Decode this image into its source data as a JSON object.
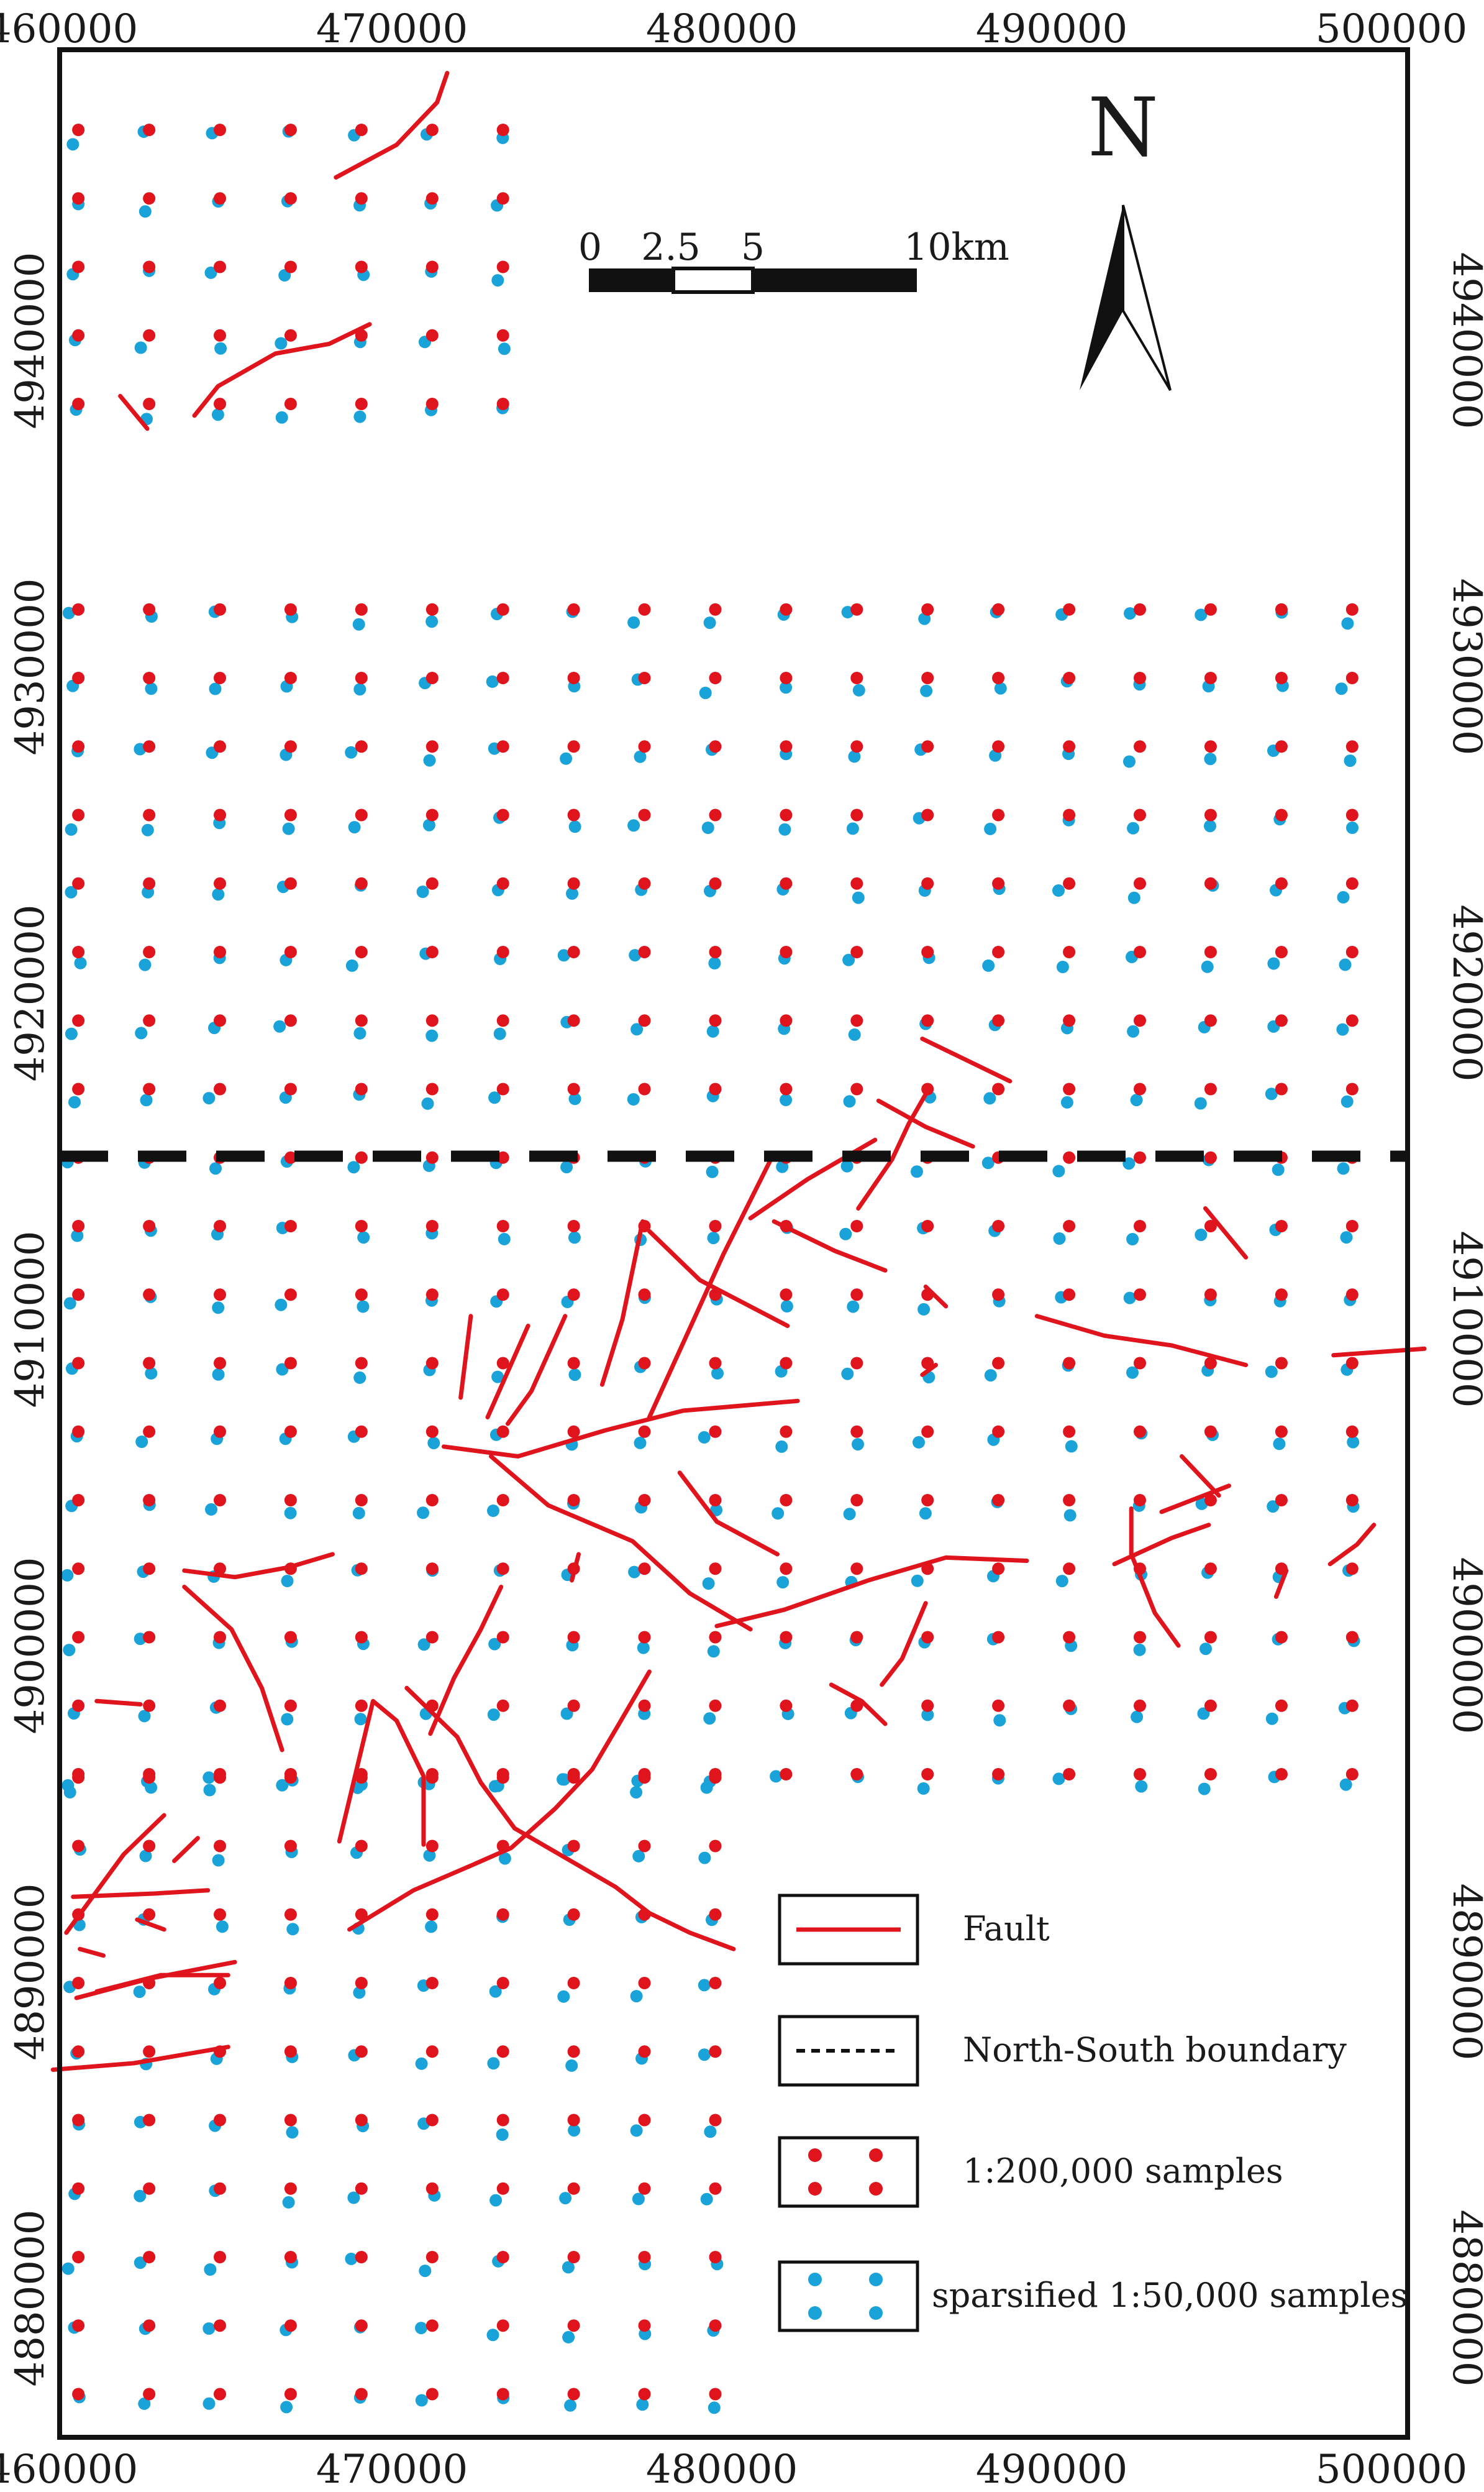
{
  "map": {
    "x_ticks": [
      "460000",
      "470000",
      "480000",
      "490000",
      "500000"
    ],
    "y_ticks": [
      "4940000",
      "4930000",
      "4920000",
      "4910000",
      "4900000",
      "4890000",
      "4880000"
    ],
    "north_label": "N",
    "scale_labels": [
      "0",
      "2.5",
      "5",
      "10km"
    ],
    "legend": {
      "fault": "Fault",
      "boundary": "North-South boundary",
      "samples_200k": "1:200,000 samples",
      "samples_50k": "sparsified 1:50,000 samples"
    },
    "colors": {
      "fault": "#e0141c",
      "sample_200k": "#e0141c",
      "sample_50k": "#1aa3d9",
      "boundary": "#111111",
      "frame": "#111111"
    },
    "extent": {
      "x_min": 460000,
      "x_max": 500000,
      "y_min": 4877000,
      "y_max": 4948000
    },
    "boundary_northing": 4915000,
    "sample_grid": {
      "spacing_m": 2100,
      "x_start": 460500,
      "regions": [
        {
          "x_from": 460500,
          "x_to": 473100,
          "y_from": 4938000,
          "y_to": 4946400
        },
        {
          "x_from": 460500,
          "x_to": 500000,
          "y_from": 4917000,
          "y_to": 4931700
        },
        {
          "x_from": 460500,
          "x_to": 500000,
          "y_from": 4896000,
          "y_to": 4915000
        },
        {
          "x_from": 460500,
          "x_to": 479400,
          "y_from": 4877000,
          "y_to": 4896000
        }
      ]
    },
    "faults": [
      [
        [
          468200,
          4945000
        ],
        [
          470000,
          4946000
        ],
        [
          471200,
          4947300
        ],
        [
          471500,
          4948200
        ]
      ],
      [
        [
          464000,
          4937700
        ],
        [
          464700,
          4938600
        ],
        [
          466400,
          4939600
        ],
        [
          468000,
          4939900
        ],
        [
          469200,
          4940500
        ]
      ],
      [
        [
          461800,
          4938300
        ],
        [
          462600,
          4937300
        ]
      ],
      [
        [
          483700,
          4913400
        ],
        [
          484700,
          4914900
        ],
        [
          485200,
          4916000
        ],
        [
          485700,
          4916900
        ]
      ],
      [
        [
          484300,
          4916700
        ],
        [
          485700,
          4915900
        ],
        [
          487100,
          4915300
        ]
      ],
      [
        [
          485600,
          4918600
        ],
        [
          486800,
          4918000
        ],
        [
          488200,
          4917300
        ]
      ],
      [
        [
          480500,
          4913100
        ],
        [
          482200,
          4914300
        ],
        [
          484200,
          4915500
        ]
      ],
      [
        [
          471400,
          4906100
        ],
        [
          473600,
          4905800
        ],
        [
          476200,
          4906600
        ],
        [
          478500,
          4907200
        ],
        [
          481900,
          4907500
        ]
      ],
      [
        [
          481200,
          4915100
        ],
        [
          479700,
          4912000
        ],
        [
          478600,
          4909500
        ],
        [
          477500,
          4907000
        ]
      ],
      [
        [
          477300,
          4913000
        ],
        [
          476700,
          4910000
        ],
        [
          476100,
          4908000
        ]
      ],
      [
        [
          477500,
          4912700
        ],
        [
          479000,
          4911200
        ],
        [
          481600,
          4909800
        ]
      ],
      [
        [
          481200,
          4913000
        ],
        [
          483000,
          4912100
        ],
        [
          484500,
          4911500
        ]
      ],
      [
        [
          472200,
          4910100
        ],
        [
          471900,
          4907600
        ]
      ],
      [
        [
          473900,
          4909800
        ],
        [
          472700,
          4907000
        ]
      ],
      [
        [
          475000,
          4910100
        ],
        [
          474000,
          4907800
        ],
        [
          473300,
          4906800
        ]
      ],
      [
        [
          472800,
          4905800
        ],
        [
          474500,
          4904300
        ],
        [
          477000,
          4903200
        ],
        [
          478700,
          4901600
        ],
        [
          480500,
          4900500
        ]
      ],
      [
        [
          478400,
          4905300
        ],
        [
          479500,
          4903800
        ],
        [
          481300,
          4902800
        ]
      ],
      [
        [
          479500,
          4900600
        ],
        [
          481500,
          4901100
        ],
        [
          484000,
          4902000
        ],
        [
          486300,
          4902700
        ],
        [
          488700,
          4902600
        ]
      ],
      [
        [
          475400,
          4902800
        ],
        [
          475200,
          4902000
        ]
      ],
      [
        [
          485700,
          4901300
        ],
        [
          485000,
          4899600
        ],
        [
          484400,
          4898800
        ]
      ],
      [
        [
          482900,
          4898800
        ],
        [
          483800,
          4898300
        ],
        [
          484500,
          4897600
        ]
      ],
      [
        [
          485700,
          4911000
        ],
        [
          486300,
          4910400
        ]
      ],
      [
        [
          486000,
          4908600
        ],
        [
          485600,
          4908300
        ]
      ],
      [
        [
          489000,
          4910100
        ],
        [
          491000,
          4909500
        ],
        [
          493000,
          4909200
        ],
        [
          495200,
          4908600
        ]
      ],
      [
        [
          494000,
          4913400
        ],
        [
          495200,
          4911900
        ]
      ],
      [
        [
          497800,
          4908900
        ],
        [
          500500,
          4909100
        ]
      ],
      [
        [
          493300,
          4905800
        ],
        [
          494400,
          4904600
        ]
      ],
      [
        [
          492700,
          4904100
        ],
        [
          494700,
          4904900
        ]
      ],
      [
        [
          491800,
          4904200
        ],
        [
          491800,
          4902800
        ],
        [
          492500,
          4901000
        ],
        [
          493200,
          4900000
        ]
      ],
      [
        [
          491300,
          4902500
        ],
        [
          493000,
          4903300
        ],
        [
          494100,
          4903700
        ]
      ],
      [
        [
          496100,
          4901500
        ],
        [
          496400,
          4902300
        ]
      ],
      [
        [
          497700,
          4902500
        ],
        [
          498500,
          4903100
        ],
        [
          499000,
          4903700
        ]
      ],
      [
        [
          463700,
          4902300
        ],
        [
          465200,
          4902100
        ],
        [
          466800,
          4902400
        ],
        [
          468100,
          4902800
        ]
      ],
      [
        [
          463700,
          4901800
        ],
        [
          465100,
          4900500
        ],
        [
          466000,
          4898700
        ],
        [
          466600,
          4896800
        ]
      ],
      [
        [
          462400,
          4898200
        ],
        [
          461100,
          4898300
        ]
      ],
      [
        [
          470800,
          4893900
        ],
        [
          470800,
          4896000
        ],
        [
          470000,
          4897700
        ],
        [
          469300,
          4898300
        ],
        [
          468300,
          4894000
        ]
      ],
      [
        [
          470300,
          4898700
        ],
        [
          471800,
          4897200
        ],
        [
          472500,
          4895800
        ],
        [
          473500,
          4894400
        ],
        [
          476500,
          4892600
        ],
        [
          477500,
          4891800
        ],
        [
          478700,
          4891200
        ],
        [
          480000,
          4890700
        ]
      ],
      [
        [
          471000,
          4897300
        ],
        [
          471700,
          4899000
        ],
        [
          472500,
          4900500
        ],
        [
          473100,
          4901800
        ]
      ],
      [
        [
          468600,
          4891300
        ],
        [
          470500,
          4892500
        ],
        [
          472300,
          4893300
        ],
        [
          473400,
          4893800
        ],
        [
          474700,
          4895000
        ],
        [
          475800,
          4896200
        ],
        [
          476600,
          4897600
        ],
        [
          477500,
          4899200
        ]
      ],
      [
        [
          460200,
          4891200
        ],
        [
          461900,
          4893600
        ],
        [
          463100,
          4894800
        ]
      ],
      [
        [
          460400,
          4892300
        ],
        [
          462800,
          4892400
        ],
        [
          464400,
          4892500
        ]
      ],
      [
        [
          463400,
          4893400
        ],
        [
          464100,
          4894100
        ]
      ],
      [
        [
          462300,
          4891600
        ],
        [
          463100,
          4891300
        ]
      ],
      [
        [
          460500,
          4889200
        ],
        [
          462700,
          4889800
        ],
        [
          465200,
          4890300
        ]
      ],
      [
        [
          461100,
          4889400
        ],
        [
          463000,
          4889900
        ],
        [
          465000,
          4889900
        ]
      ],
      [
        [
          460600,
          4890700
        ],
        [
          461300,
          4890500
        ]
      ],
      [
        [
          459800,
          4887000
        ],
        [
          462200,
          4887200
        ],
        [
          465000,
          4887700
        ]
      ]
    ]
  }
}
